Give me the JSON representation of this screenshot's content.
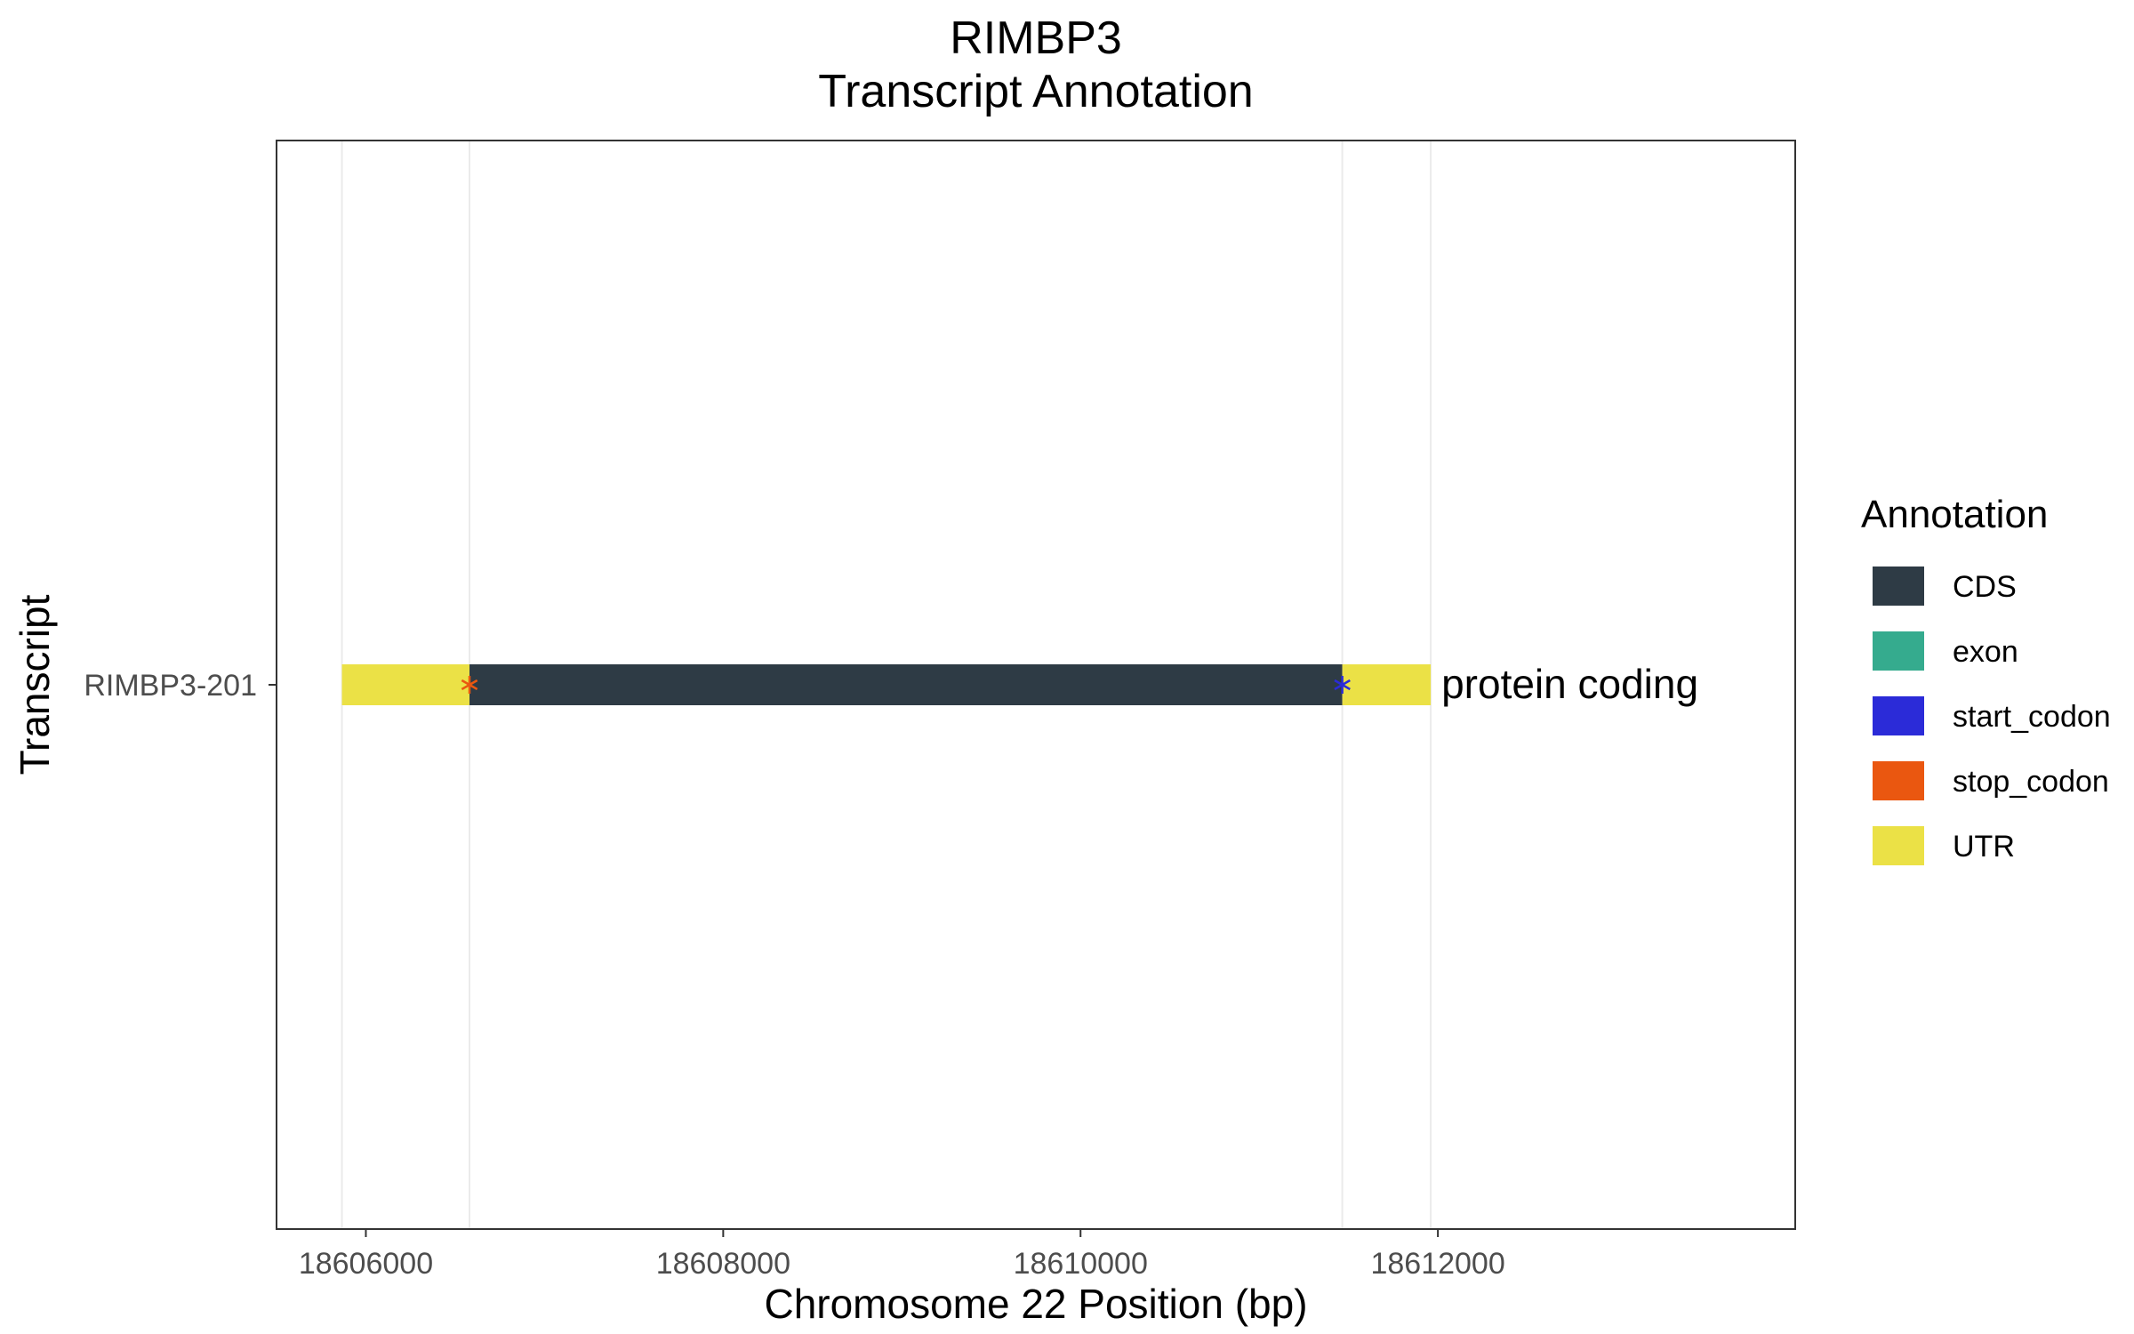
{
  "chart_data": {
    "type": "bar",
    "title": "RIMBP3",
    "subtitle": "Transcript Annotation",
    "xlabel": "Chromosome 22 Position (bp)",
    "ylabel": "Transcript",
    "xlim": [
      18605500,
      18614000
    ],
    "x_ticks": [
      18606000,
      18608000,
      18610000,
      18612000
    ],
    "x_tick_labels": [
      "18606000",
      "18608000",
      "18610000",
      "18612000"
    ],
    "categories": [
      "RIMBP3-201"
    ],
    "grid": true,
    "legend_position": "right",
    "legend": {
      "title": "Annotation",
      "entries": [
        {
          "label": "CDS",
          "color": "#2e3b45"
        },
        {
          "label": "exon",
          "color": "#35ab8e"
        },
        {
          "label": "start_codon",
          "color": "#2b2bd8"
        },
        {
          "label": "stop_codon",
          "color": "#ea5710"
        },
        {
          "label": "UTR",
          "color": "#ebe146"
        }
      ]
    },
    "segments": [
      {
        "transcript": "RIMBP3-201",
        "feature": "UTR",
        "start": 18605866,
        "end": 18606580
      },
      {
        "transcript": "RIMBP3-201",
        "feature": "CDS",
        "start": 18606580,
        "end": 18611465
      },
      {
        "transcript": "RIMBP3-201",
        "feature": "UTR",
        "start": 18611465,
        "end": 18611960
      }
    ],
    "codons": [
      {
        "transcript": "RIMBP3-201",
        "feature": "stop_codon",
        "position": 18606580
      },
      {
        "transcript": "RIMBP3-201",
        "feature": "start_codon",
        "position": 18611465
      }
    ],
    "annotations": [
      {
        "transcript": "RIMBP3-201",
        "text": "protein coding"
      }
    ]
  }
}
